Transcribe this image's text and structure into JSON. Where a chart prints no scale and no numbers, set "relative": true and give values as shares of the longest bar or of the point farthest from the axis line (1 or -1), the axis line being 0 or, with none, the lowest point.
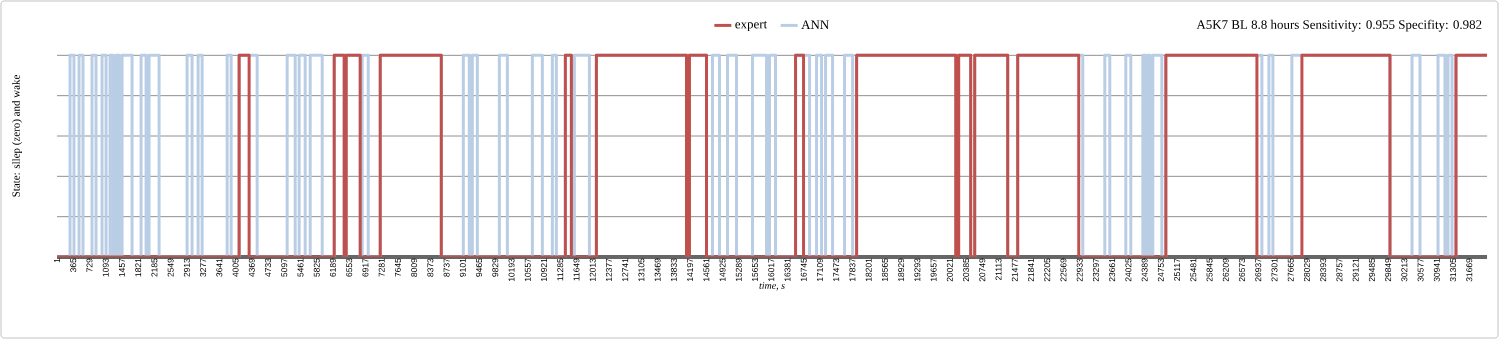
{
  "chart_data": {
    "type": "step",
    "relative": true,
    "xlabel": "time, s",
    "ylabel": "State: sllep (zero) and wake",
    "annotations": [
      "A5K7 BL 8.8 hours  Sensitivity:  0.955    Specifity:  0.982"
    ],
    "legend": "top",
    "grid": "y",
    "tick_labels": "x",
    "xlim": [
      1,
      32067
    ],
    "xticks": [
      1,
      365,
      729,
      1093,
      1457,
      1821,
      2185,
      2549,
      2913,
      3277,
      3641,
      4005,
      4369,
      4733,
      5097,
      5461,
      5825,
      6189,
      6553,
      6917,
      7281,
      7645,
      8009,
      8373,
      8737,
      9101,
      9465,
      9829,
      10193,
      10557,
      10921,
      11285,
      11649,
      12013,
      12377,
      12741,
      13105,
      13469,
      13833,
      14197,
      14561,
      14925,
      15289,
      15653,
      16017,
      16381,
      16745,
      17109,
      17473,
      17837,
      18201,
      18565,
      18929,
      19293,
      19657,
      20021,
      20385,
      20749,
      21113,
      21477,
      21841,
      22205,
      22569,
      22933,
      23297,
      23661,
      24025,
      24389,
      24753,
      25117,
      25481,
      25845,
      26209,
      26573,
      26937,
      27301,
      27665,
      28029,
      28393,
      28757,
      29121,
      29485,
      29849,
      30213,
      30577,
      30941,
      31305,
      31669
    ],
    "series": [
      {
        "name": "expert",
        "color": "#c0504d",
        "x": [
          1,
          4085,
          4309,
          6217,
          6441,
          6486,
          6800,
          7249,
          8618,
          11400,
          11535,
          12096,
          14116,
          14183,
          14565,
          16562,
          16741,
          17931,
          20153,
          20220,
          20489,
          20579,
          21319,
          21543,
          22912,
          24865,
          26907,
          27916,
          29891,
          31371,
          32067
        ],
        "values": [
          0,
          1,
          0,
          1,
          0,
          1,
          0,
          1,
          0,
          1,
          0,
          1,
          0,
          1,
          0,
          1,
          0,
          1,
          0,
          1,
          0,
          1,
          0,
          1,
          0,
          1,
          0,
          1,
          0,
          1,
          1
        ]
      },
      {
        "name": "ANN",
        "color": "#b9cde5",
        "x": [
          1,
          293,
          382,
          495,
          584,
          786,
          876,
          1011,
          1101,
          1190,
          1258,
          1325,
          1392,
          1460,
          1684,
          1886,
          1998,
          2065,
          2290,
          2918,
          3030,
          3165,
          3255,
          3816,
          3906,
          4085,
          4489,
          5162,
          5342,
          5431,
          5566,
          5678,
          5948,
          6217,
          6441,
          6486,
          6800,
          6845,
          6980,
          7249,
          8618,
          9112,
          9246,
          9314,
          9426,
          9920,
          10099,
          10660,
          10884,
          11109,
          11198,
          11400,
          11535,
          11602,
          11939,
          12096,
          14565,
          14699,
          14856,
          15036,
          15238,
          15597,
          15911,
          15978,
          16113,
          16562,
          16876,
          17033,
          17145,
          17235,
          17392,
          17661,
          17841,
          17931,
          20489,
          20579,
          21319,
          21543,
          23002,
          23496,
          23608,
          23967,
          24079,
          24349,
          24416,
          24461,
          24506,
          24573,
          24775,
          24865,
          27019,
          27176,
          27266,
          27691,
          29891,
          30385,
          30564,
          30968,
          31124,
          31192,
          31282,
          31371,
          32067
        ],
        "values": [
          0,
          1,
          0,
          1,
          0,
          1,
          0,
          1,
          0,
          1,
          0,
          1,
          0,
          1,
          0,
          1,
          0,
          1,
          0,
          1,
          0,
          1,
          0,
          1,
          0,
          1,
          0,
          1,
          0,
          1,
          0,
          1,
          0,
          1,
          0,
          1,
          0,
          1,
          0,
          1,
          0,
          1,
          0,
          1,
          0,
          1,
          0,
          1,
          0,
          1,
          0,
          1,
          0,
          1,
          0,
          1,
          0,
          1,
          0,
          1,
          0,
          1,
          0,
          1,
          0,
          1,
          0,
          1,
          0,
          1,
          0,
          1,
          0,
          1,
          0,
          1,
          0,
          1,
          0,
          1,
          0,
          1,
          0,
          1,
          0,
          1,
          0,
          1,
          0,
          1,
          0,
          1,
          0,
          1,
          0,
          1,
          0,
          1,
          0,
          1,
          0,
          1,
          1
        ]
      }
    ]
  }
}
